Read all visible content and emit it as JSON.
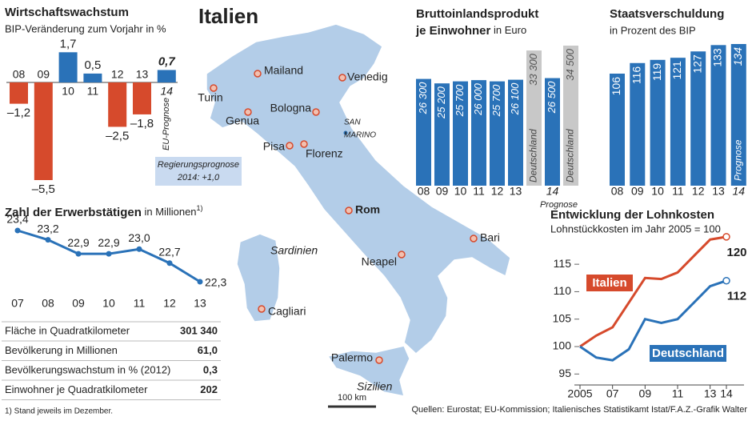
{
  "chart_data": [
    {
      "type": "bar",
      "title": "Wirtschaftswachstum",
      "subtitle": "BIP-Veränderung zum Vorjahr in %",
      "categories": [
        "08",
        "09",
        "10",
        "11",
        "12",
        "13",
        "14"
      ],
      "values": [
        -1.2,
        -5.5,
        1.7,
        0.5,
        -2.5,
        -1.8,
        0.7
      ],
      "value_labels": [
        "–1,2",
        "–5,5",
        "1,7",
        "0,5",
        "–2,5",
        "–1,8",
        "0,7"
      ],
      "colors": {
        "positive": "#2a72b8",
        "negative": "#d64a2c"
      },
      "annotations": [
        "EU-Prognose",
        "Regierungsprognose",
        "2014: +1,0"
      ]
    },
    {
      "type": "bar",
      "title": "Bruttoinlandsprodukt",
      "subtitle": "je Einwohner",
      "unit": "in Euro",
      "categories": [
        "08",
        "09",
        "10",
        "11",
        "12",
        "13",
        "14"
      ],
      "values": [
        26300,
        25200,
        25700,
        26000,
        25700,
        26100,
        26500
      ],
      "value_labels": [
        "26 300",
        "25 200",
        "25 700",
        "26 000",
        "25 700",
        "26 100",
        "26 500"
      ],
      "color": "#2a72b8",
      "comparison": {
        "name": "Deutschland",
        "color": "#c8c8c8",
        "values": [
          33300,
          34500
        ],
        "value_labels": [
          "33 300",
          "34 500"
        ]
      },
      "note": "Prognose"
    },
    {
      "type": "bar",
      "title": "Staatsverschuldung",
      "subtitle": "in Prozent des BIP",
      "categories": [
        "08",
        "09",
        "10",
        "11",
        "12",
        "13",
        "14"
      ],
      "values": [
        106,
        116,
        119,
        121,
        127,
        133,
        134
      ],
      "color": "#2a72b8",
      "note": "Prognose"
    },
    {
      "type": "line",
      "title": "Zahl der Erwerbstätigen",
      "unit": "in Millionen",
      "footnote_mark": "1)",
      "categories": [
        "07",
        "08",
        "09",
        "10",
        "11",
        "12",
        "13"
      ],
      "values": [
        23.4,
        23.2,
        22.9,
        22.9,
        23.0,
        22.7,
        22.3
      ],
      "value_labels": [
        "23,4",
        "23,2",
        "22,9",
        "22,9",
        "23,0",
        "22,7",
        "22,3"
      ],
      "color": "#2a72b8"
    },
    {
      "type": "line",
      "title": "Entwicklung der Lohnkosten",
      "subtitle": "Lohnstückkosten im Jahr 2005 = 100",
      "x": [
        2005,
        2006,
        2007,
        2008,
        2009,
        2010,
        2011,
        2012,
        2013,
        2014
      ],
      "xlim": [
        2005,
        2014
      ],
      "xticks": [
        2005,
        {
          "value": 2007,
          "label": "07"
        },
        {
          "value": 2009,
          "label": "09"
        },
        {
          "value": 2011,
          "label": "11"
        },
        {
          "value": 2013,
          "label": "13"
        },
        {
          "value": 2014,
          "label": "14"
        }
      ],
      "ylim": [
        93,
        121
      ],
      "yticks": [
        95,
        100,
        105,
        110,
        115
      ],
      "series": [
        {
          "name": "Italien",
          "color": "#d64a2c",
          "values": [
            100,
            102,
            103.5,
            108,
            112.5,
            112.3,
            113.5,
            116.5,
            119.5,
            120
          ]
        },
        {
          "name": "Deutschland",
          "color": "#2a72b8",
          "values": [
            100,
            98,
            97.5,
            99.5,
            105,
            104.3,
            105,
            108,
            111,
            112
          ]
        }
      ]
    }
  ],
  "map": {
    "title": "Italien",
    "cities": [
      "Turin",
      "Mailand",
      "Venedig",
      "Genua",
      "Bologna",
      "Pisa",
      "Florenz",
      "Rom",
      "Bari",
      "Neapel",
      "Cagliari",
      "Palermo"
    ],
    "san_marino": [
      "SAN",
      "MARINO"
    ],
    "regions": [
      "Sardinien",
      "Sizilien"
    ],
    "scale": "100 km"
  },
  "table": {
    "rows": [
      [
        "Fläche in Quadratkilometer",
        "301 340"
      ],
      [
        "Bevölkerung in Millionen",
        "61,0"
      ],
      [
        "Bevölkerungswachstum in % (2012)",
        "0,3"
      ],
      [
        "Einwohner je Quadratkilometer",
        "202"
      ]
    ]
  },
  "footnote": "1) Stand jeweils im Dezember.",
  "source": "Quellen: Eurostat; EU-Kommission; Italienisches Statistikamt Istat/F.A.Z.-Grafik Walter"
}
